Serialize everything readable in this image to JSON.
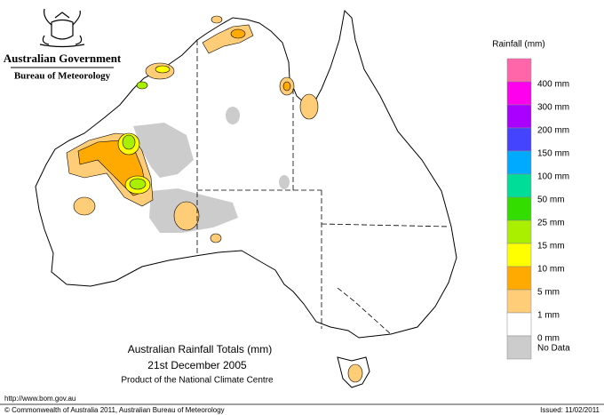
{
  "header": {
    "government": "Australian Government",
    "agency": "Bureau of Meteorology"
  },
  "legend": {
    "title": "Rainfall (mm)",
    "colors": [
      "#ff66aa",
      "#ff00ee",
      "#aa00ff",
      "#4444ff",
      "#00aaff",
      "#00dd99",
      "#33dd00",
      "#aaee00",
      "#ffff00",
      "#ffaa00",
      "#ffcc77",
      "#ffffff",
      "#cccccc"
    ],
    "labels": [
      "400 mm",
      "300 mm",
      "200 mm",
      "150 mm",
      "100 mm",
      "50 mm",
      "25 mm",
      "15 mm",
      "10 mm",
      "5 mm",
      "1 mm",
      "0 mm",
      "No Data"
    ]
  },
  "title": {
    "line1": "Australian Rainfall Totals (mm)",
    "line2": "21st December 2005",
    "line3": "Product of the National Climate Centre"
  },
  "footer": {
    "url": "http://www.bom.gov.au",
    "copyright": "© Commonwealth of Australia 2011, Australian Bureau of Meteorology",
    "issued": "Issued: 11/02/2011"
  }
}
